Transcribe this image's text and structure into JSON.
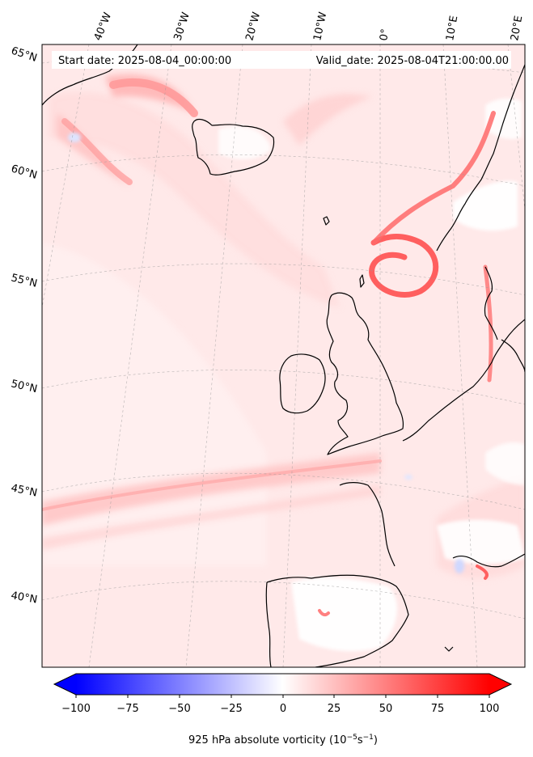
{
  "header": {
    "start_date": "Start date: 2025-08-04_00:00:00",
    "valid_date": "Valid_date: 2025-08-04T21:00:00.00"
  },
  "lon_labels": [
    "40°W",
    "30°W",
    "20°W",
    "10°W",
    "0°",
    "10°E",
    "20°E"
  ],
  "lat_labels": [
    "65°N",
    "60°N",
    "55°N",
    "50°N",
    "45°N",
    "40°N"
  ],
  "colorbar": {
    "ticks": [
      "−100",
      "−75",
      "−50",
      "−25",
      "0",
      "25",
      "50",
      "75",
      "100"
    ],
    "label_main": "925 hPa absolute vorticity (10",
    "label_exp1": "−5",
    "label_mid": "s",
    "label_exp2": "−1",
    "label_end": ")",
    "range": [
      -100,
      100
    ],
    "colormap": "bwr",
    "extend": "both"
  },
  "colors": {
    "background_field": "#ffe8e8",
    "positive_max": "#ff0000",
    "negative_max": "#0000ff",
    "coastline": "#000000"
  }
}
